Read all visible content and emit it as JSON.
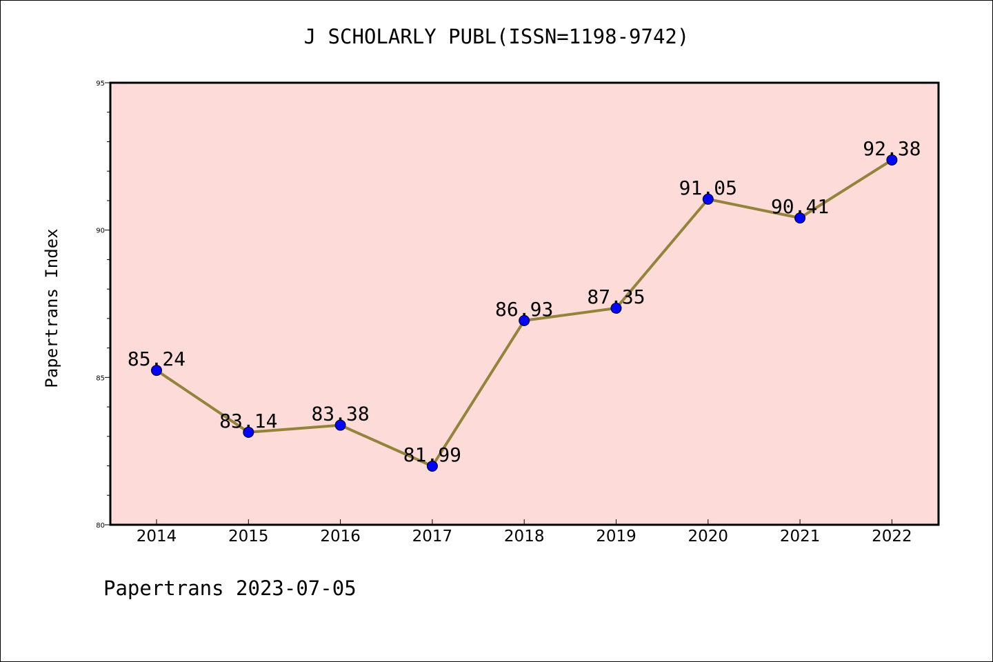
{
  "chart_data": {
    "type": "line",
    "title": "J SCHOLARLY PUBL(ISSN=1198-9742)",
    "ylabel": "Papertrans Index",
    "xlabel": "",
    "categories": [
      "2014",
      "2015",
      "2016",
      "2017",
      "2018",
      "2019",
      "2020",
      "2021",
      "2022"
    ],
    "values": [
      85.24,
      83.14,
      83.38,
      81.99,
      86.93,
      87.35,
      91.05,
      90.41,
      92.38
    ],
    "data_labels": [
      "85.24",
      "83.14",
      "83.38",
      "81.99",
      "86.93",
      "87.35",
      "91.05",
      "90.41",
      "92.38"
    ],
    "ylim": [
      80,
      95
    ],
    "yticks": [
      80,
      85,
      90,
      95
    ],
    "grid": false,
    "colors": {
      "plot_background": "#fddbd8",
      "line": "#94833b",
      "marker": "#0000ff"
    }
  },
  "footer": {
    "text": "Papertrans 2023-07-05"
  }
}
